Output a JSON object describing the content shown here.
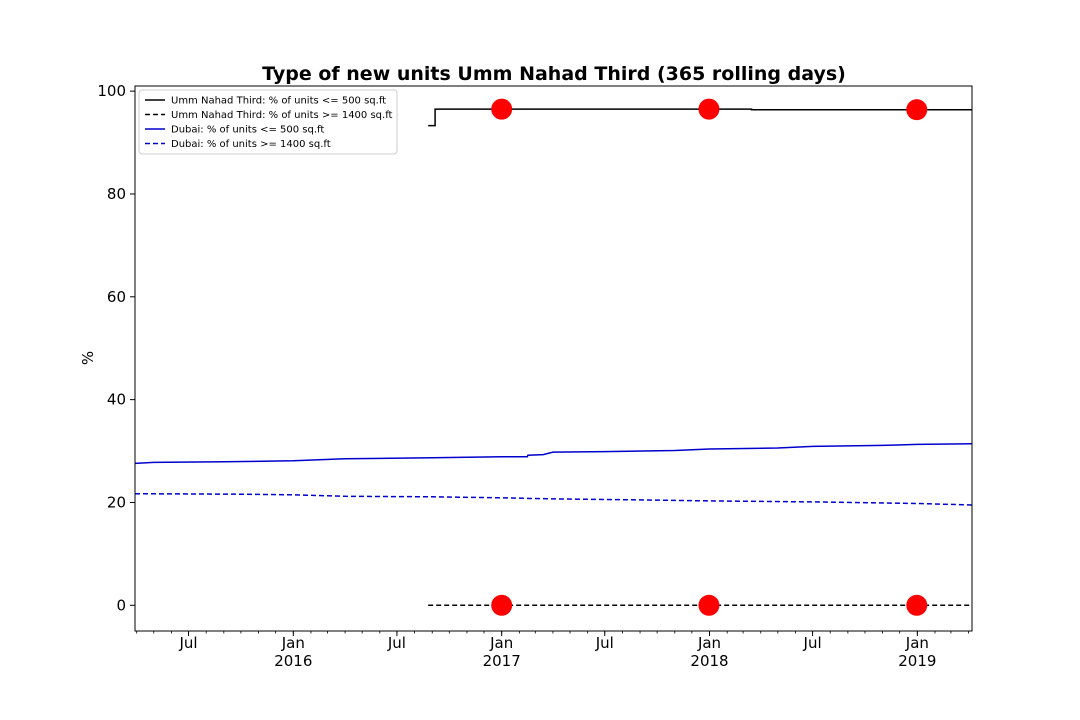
{
  "chart_data": {
    "type": "line",
    "title": "Type of new units Umm Nahad Third (365 rolling days)",
    "xlabel": "",
    "ylabel": "%",
    "xlim": [
      "2015-03-29",
      "2019-04-07"
    ],
    "ylim": [
      -5,
      101
    ],
    "yticks": [
      0,
      20,
      40,
      60,
      80,
      100
    ],
    "xticks": [
      {
        "date": "2015-07-01",
        "label": "Jul",
        "sublabel": ""
      },
      {
        "date": "2016-01-01",
        "label": "Jan",
        "sublabel": "2016"
      },
      {
        "date": "2016-07-01",
        "label": "Jul",
        "sublabel": ""
      },
      {
        "date": "2017-01-01",
        "label": "Jan",
        "sublabel": "2017"
      },
      {
        "date": "2017-07-01",
        "label": "Jul",
        "sublabel": ""
      },
      {
        "date": "2018-01-01",
        "label": "Jan",
        "sublabel": "2018"
      },
      {
        "date": "2018-07-01",
        "label": "Jul",
        "sublabel": ""
      },
      {
        "date": "2019-01-01",
        "label": "Jan",
        "sublabel": "2019"
      }
    ],
    "grid": false,
    "legend_position": "top-left",
    "series": [
      {
        "name": "Umm Nahad Third: % of units <= 500 sq.ft",
        "color": "#000000",
        "dash": "solid",
        "step": true,
        "points": [
          [
            "2016-08-25",
            93.3
          ],
          [
            "2016-09-05",
            93.3
          ],
          [
            "2016-09-06",
            96.5
          ],
          [
            "2018-03-15",
            96.5
          ],
          [
            "2018-03-16",
            96.4
          ],
          [
            "2019-04-07",
            96.4
          ]
        ]
      },
      {
        "name": "Umm Nahad Third: % of units >= 1400 sq.ft",
        "color": "#000000",
        "dash": "dashed",
        "step": false,
        "points": [
          [
            "2016-08-25",
            0.0
          ],
          [
            "2019-04-07",
            0.0
          ]
        ]
      },
      {
        "name": "Dubai: % of units <= 500 sq.ft",
        "color": "#0000cc",
        "dash": "solid",
        "step": false,
        "points": [
          [
            "2015-03-29",
            27.6
          ],
          [
            "2015-05-01",
            27.8
          ],
          [
            "2015-09-01",
            27.9
          ],
          [
            "2016-01-01",
            28.1
          ],
          [
            "2016-04-01",
            28.5
          ],
          [
            "2016-09-01",
            28.7
          ],
          [
            "2017-01-01",
            28.9
          ],
          [
            "2017-02-15",
            28.9
          ],
          [
            "2017-02-16",
            29.2
          ],
          [
            "2017-03-15",
            29.3
          ],
          [
            "2017-04-01",
            29.8
          ],
          [
            "2017-07-01",
            29.9
          ],
          [
            "2017-11-01",
            30.1
          ],
          [
            "2018-01-01",
            30.4
          ],
          [
            "2018-05-01",
            30.6
          ],
          [
            "2018-07-01",
            30.9
          ],
          [
            "2018-11-01",
            31.1
          ],
          [
            "2019-01-01",
            31.3
          ],
          [
            "2019-04-07",
            31.4
          ]
        ]
      },
      {
        "name": "Dubai: % of units >= 1400 sq.ft",
        "color": "#0000cc",
        "dash": "dashed",
        "step": false,
        "points": [
          [
            "2015-03-29",
            21.7
          ],
          [
            "2015-10-01",
            21.6
          ],
          [
            "2016-01-01",
            21.5
          ],
          [
            "2016-04-01",
            21.2
          ],
          [
            "2016-09-01",
            21.1
          ],
          [
            "2017-01-01",
            20.9
          ],
          [
            "2017-04-01",
            20.7
          ],
          [
            "2017-09-01",
            20.5
          ],
          [
            "2018-01-01",
            20.3
          ],
          [
            "2018-07-01",
            20.1
          ],
          [
            "2019-01-01",
            19.8
          ],
          [
            "2019-04-07",
            19.5
          ]
        ]
      }
    ],
    "markers": {
      "color": "#ff0000",
      "points": [
        [
          "2017-01-01",
          96.5
        ],
        [
          "2017-12-31",
          96.5
        ],
        [
          "2018-12-31",
          96.4
        ],
        [
          "2017-01-01",
          0.0
        ],
        [
          "2017-12-31",
          0.0
        ],
        [
          "2018-12-31",
          0.0
        ]
      ]
    }
  }
}
